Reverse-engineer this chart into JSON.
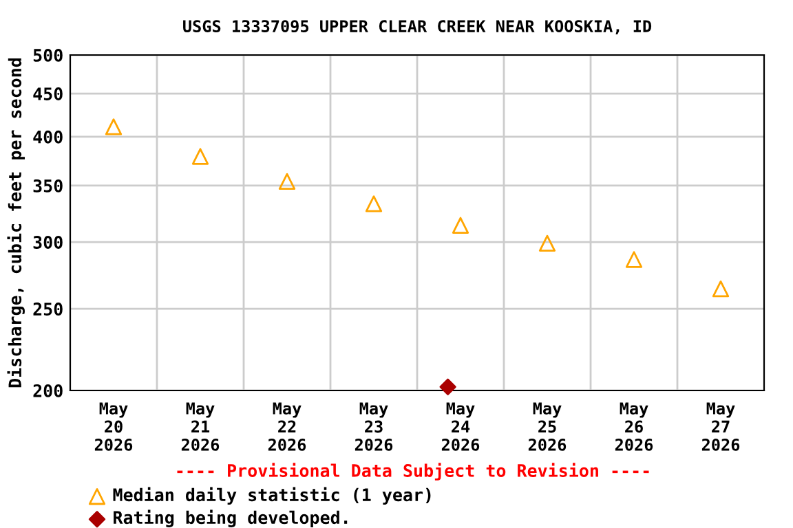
{
  "chart_data": {
    "type": "scatter",
    "title": "USGS 13337095 UPPER CLEAR CREEK NEAR KOOSKIA, ID",
    "ylabel": "Discharge, cubic feet per second",
    "series": [
      {
        "name": "Median daily statistic (1 year)",
        "color": "#ffa500",
        "marker": "triangle",
        "x": [
          "2026-05-20T12:00",
          "2026-05-21T12:00",
          "2026-05-22T12:00",
          "2026-05-23T12:00",
          "2026-05-24T12:00",
          "2026-05-25T12:00",
          "2026-05-26T12:00",
          "2026-05-27T12:00"
        ],
        "values": [
          411,
          379,
          354,
          333,
          314,
          299,
          286,
          264
        ]
      },
      {
        "name": "Rating being developed.",
        "color": "#aa0000",
        "marker": "diamond",
        "x": [
          "2026-05-24T08:30"
        ],
        "values": [
          202
        ]
      }
    ],
    "log": "y",
    "ylim": [
      200,
      500
    ],
    "yticks": [
      200,
      250,
      300,
      350,
      400,
      450,
      500
    ],
    "xlim": [
      "2026-05-20",
      "2026-05-28"
    ],
    "xticks": [
      {
        "value": "2026-05-20T12:00",
        "label": "May\n20\n2026"
      },
      {
        "value": "2026-05-21",
        "label": null
      },
      {
        "value": "2026-05-21T12:00",
        "label": "May\n21\n2026"
      },
      {
        "value": "2026-05-22",
        "label": null
      },
      {
        "value": "2026-05-22T12:00",
        "label": "May\n22\n2026"
      },
      {
        "value": "2026-05-23",
        "label": null
      },
      {
        "value": "2026-05-23T12:00",
        "label": "May\n23\n2026"
      },
      {
        "value": "2026-05-24",
        "label": null
      },
      {
        "value": "2026-05-24T12:00",
        "label": "May\n24\n2026"
      },
      {
        "value": "2026-05-25",
        "label": null
      },
      {
        "value": "2026-05-25T12:00",
        "label": "May\n25\n2026"
      },
      {
        "value": "2026-05-26",
        "label": null
      },
      {
        "value": "2026-05-26T12:00",
        "label": "May\n26\n2026"
      },
      {
        "value": "2026-05-27",
        "label": null
      },
      {
        "value": "2026-05-27T12:00",
        "label": "May\n27\n2026"
      }
    ],
    "grid": true,
    "legend": "bottom",
    "annotations": [
      "---- Provisional Data Subject to Revision ----"
    ]
  }
}
